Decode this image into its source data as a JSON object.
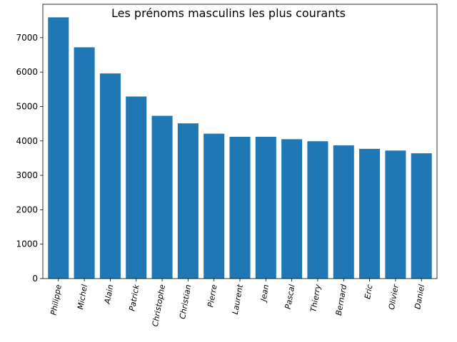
{
  "chart_data": {
    "type": "bar",
    "title": "Les prénoms masculins les plus courants",
    "xlabel": "",
    "ylabel": "",
    "categories": [
      "Philippe",
      "Michel",
      "Alain",
      "Patrick",
      "Christophe",
      "Christian",
      "Pierre",
      "Laurent",
      "Jean",
      "Pascal",
      "Thierry",
      "Bernard",
      "Eric",
      "Olivier",
      "Daniel"
    ],
    "values": [
      7590,
      6720,
      5960,
      5290,
      4730,
      4510,
      4210,
      4120,
      4120,
      4050,
      3990,
      3870,
      3770,
      3720,
      3640
    ],
    "ylim": [
      0,
      7970
    ],
    "yticks": [
      0,
      1000,
      2000,
      3000,
      4000,
      5000,
      6000,
      7000
    ],
    "bar_color": "#1f77b4",
    "grid": false,
    "legend": "none"
  }
}
